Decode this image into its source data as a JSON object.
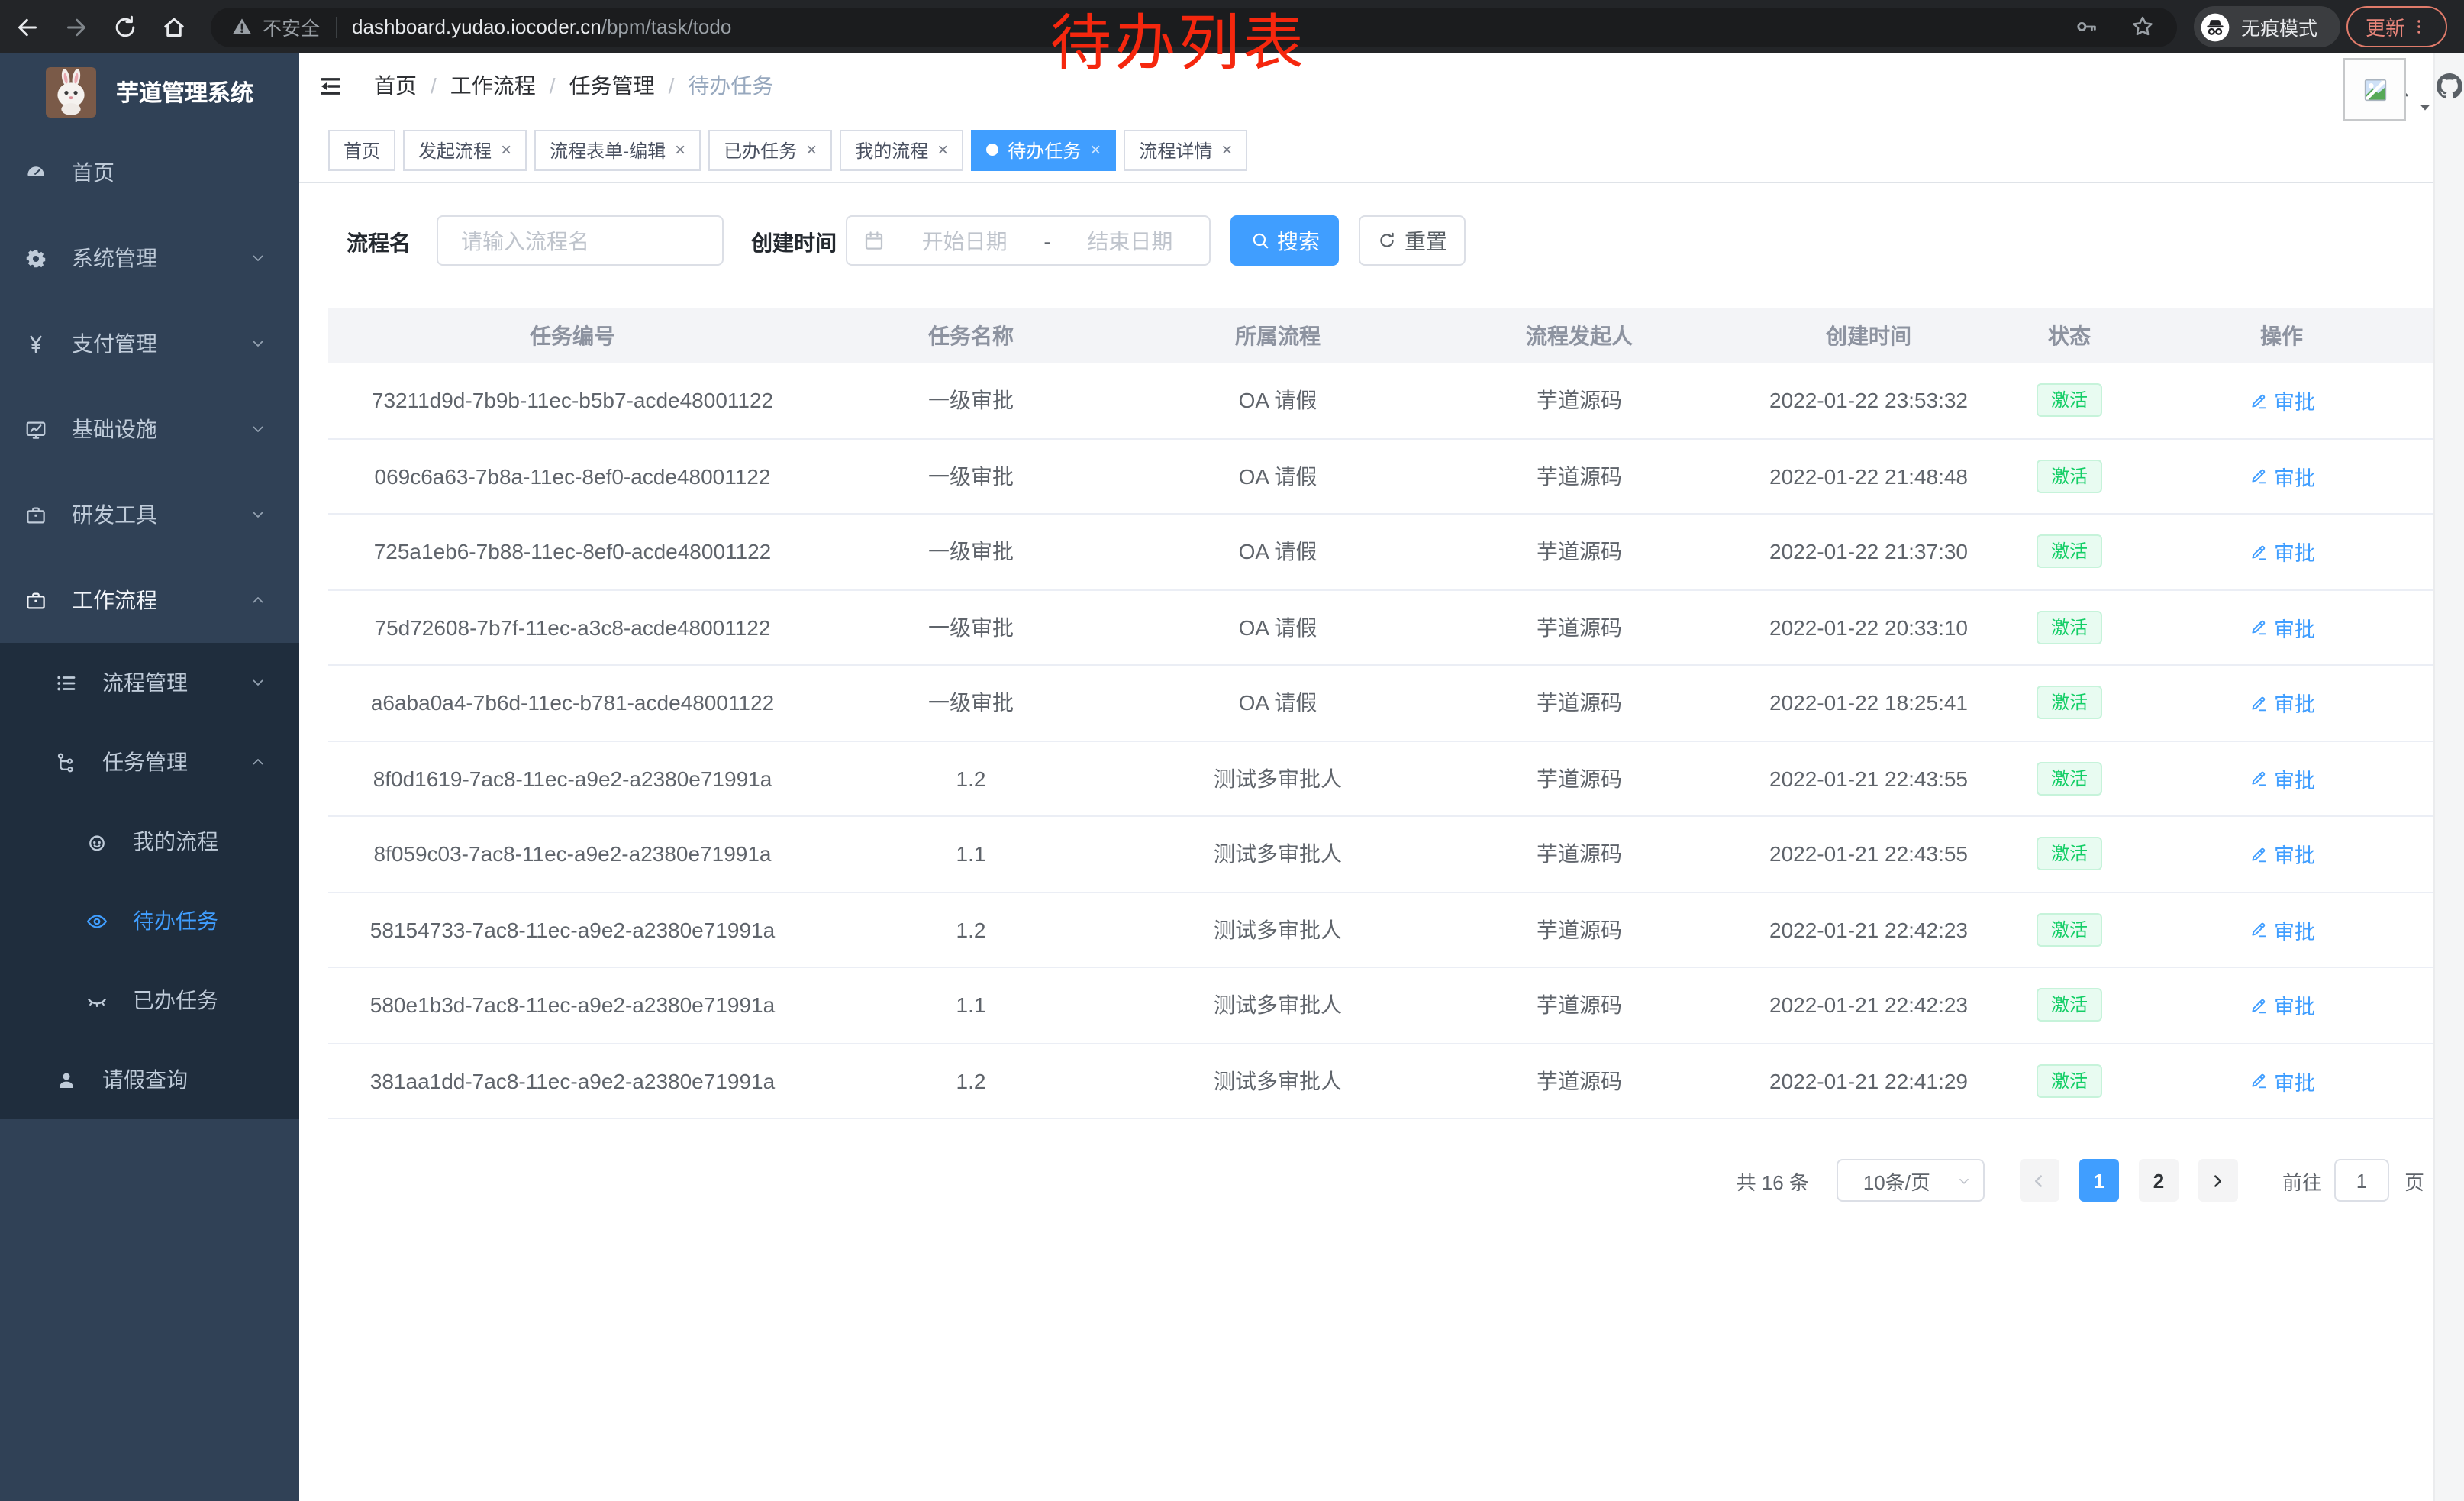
{
  "browser": {
    "icons": {
      "back": "arrow-left-icon",
      "forward": "arrow-right-icon",
      "reload": "reload-icon",
      "home": "home-icon",
      "warning": "warning-icon",
      "key": "key-icon",
      "star": "star-icon",
      "incognito": "incognito-icon",
      "menu_dots": "dots-vertical-icon"
    },
    "security_label": "不安全",
    "url_host": "dashboard.yudao.iocoder.cn",
    "url_path": "/bpm/task/todo",
    "incognito_label": "无痕模式",
    "update_label": "更新"
  },
  "annotation": {
    "text": "待办列表",
    "color": "#f5270e"
  },
  "colors": {
    "accent": "#409eff",
    "success": "#13ce66",
    "sidebar_bg": "#304156",
    "submenu_bg": "#1f2d3d",
    "annotation_red": "#f5270e",
    "update_pill_red": "#e07b6a"
  },
  "sidebar": {
    "app_title": "芋道管理系统",
    "logo_icon": "rabbit-logo",
    "items": [
      {
        "id": "home",
        "label": "首页",
        "icon": "dashboard-icon",
        "level": 1,
        "active": false,
        "open": false
      },
      {
        "id": "system",
        "label": "系统管理",
        "icon": "gear-icon",
        "level": 1,
        "arrow_icon": "chevron-down-icon",
        "active": false,
        "open": false
      },
      {
        "id": "payment",
        "label": "支付管理",
        "icon": "yen-icon",
        "level": 1,
        "arrow_icon": "chevron-down-icon",
        "active": false,
        "open": false
      },
      {
        "id": "infra",
        "label": "基础设施",
        "icon": "monitor-icon",
        "level": 1,
        "arrow_icon": "chevron-down-icon",
        "active": false,
        "open": false
      },
      {
        "id": "devtools",
        "label": "研发工具",
        "icon": "briefcase-icon",
        "level": 1,
        "arrow_icon": "chevron-down-icon",
        "active": false,
        "open": false
      },
      {
        "id": "workflow",
        "label": "工作流程",
        "icon": "briefcase-icon",
        "level": 1,
        "arrow_icon": "chevron-up-icon",
        "active": false,
        "open": true
      }
    ],
    "submenu": [
      {
        "id": "process-mgmt",
        "label": "流程管理",
        "icon": "list-icon",
        "level": 2,
        "arrow_icon": "chevron-down-icon",
        "active": false
      },
      {
        "id": "task-mgmt",
        "label": "任务管理",
        "icon": "tree-icon",
        "level": 2,
        "arrow_icon": "chevron-up-icon",
        "active": false
      },
      {
        "id": "my-process",
        "label": "我的流程",
        "icon": "face-icon",
        "level": 3,
        "active": false
      },
      {
        "id": "todo-task",
        "label": "待办任务",
        "icon": "eye-open-icon",
        "level": 3,
        "active": true
      },
      {
        "id": "done-task",
        "label": "已办任务",
        "icon": "eye-closed-icon",
        "level": 3,
        "active": false
      },
      {
        "id": "leave-query",
        "label": "请假查询",
        "icon": "user-icon",
        "level": 2,
        "active": false
      }
    ]
  },
  "header": {
    "fold_icon": "fold-icon",
    "breadcrumb": [
      {
        "label": "首页",
        "sep": true,
        "current": false
      },
      {
        "label": "工作流程",
        "sep": true,
        "current": false
      },
      {
        "label": "任务管理",
        "sep": true,
        "current": false
      },
      {
        "label": "待办任务",
        "sep": false,
        "current": true
      }
    ],
    "icons": [
      {
        "icon": "search-icon"
      },
      {
        "icon": "github-icon"
      },
      {
        "icon": "help-icon"
      },
      {
        "icon": "fullscreen-icon"
      },
      {
        "icon": "font-size-icon"
      }
    ],
    "avatar_icon": "broken-image-icon",
    "caret_icon": "caret-down-icon"
  },
  "tabs": [
    {
      "id": "home",
      "label": "首页",
      "closable": false,
      "active": false
    },
    {
      "id": "start",
      "label": "发起流程",
      "closable": true,
      "active": false
    },
    {
      "id": "form-edit",
      "label": "流程表单-编辑",
      "closable": true,
      "active": false
    },
    {
      "id": "done",
      "label": "已办任务",
      "closable": true,
      "active": false
    },
    {
      "id": "mine",
      "label": "我的流程",
      "closable": true,
      "active": false
    },
    {
      "id": "todo",
      "label": "待办任务",
      "closable": true,
      "active": true
    },
    {
      "id": "detail",
      "label": "流程详情",
      "closable": true,
      "active": false
    }
  ],
  "filters": {
    "name_label": "流程名",
    "name_placeholder": "请输入流程名",
    "name_value": "",
    "time_label": "创建时间",
    "calendar_icon": "calendar-icon",
    "start_placeholder": "开始日期",
    "range_separator": "-",
    "end_placeholder": "结束日期",
    "search_label": "搜索",
    "search_icon": "search-icon",
    "reset_label": "重置",
    "reset_icon": "refresh-icon"
  },
  "table": {
    "columns": [
      "任务编号",
      "任务名称",
      "所属流程",
      "流程发起人",
      "创建时间",
      "状态",
      "操作"
    ],
    "action_label": "审批",
    "action_icon": "edit-icon",
    "rows": [
      {
        "id": "73211d9d-7b9b-11ec-b5b7-acde48001122",
        "name": "一级审批",
        "process": "OA 请假",
        "initiator": "芋道源码",
        "created": "2022-01-22 23:53:32",
        "status": "激活"
      },
      {
        "id": "069c6a63-7b8a-11ec-8ef0-acde48001122",
        "name": "一级审批",
        "process": "OA 请假",
        "initiator": "芋道源码",
        "created": "2022-01-22 21:48:48",
        "status": "激活"
      },
      {
        "id": "725a1eb6-7b88-11ec-8ef0-acde48001122",
        "name": "一级审批",
        "process": "OA 请假",
        "initiator": "芋道源码",
        "created": "2022-01-22 21:37:30",
        "status": "激活"
      },
      {
        "id": "75d72608-7b7f-11ec-a3c8-acde48001122",
        "name": "一级审批",
        "process": "OA 请假",
        "initiator": "芋道源码",
        "created": "2022-01-22 20:33:10",
        "status": "激活"
      },
      {
        "id": "a6aba0a4-7b6d-11ec-b781-acde48001122",
        "name": "一级审批",
        "process": "OA 请假",
        "initiator": "芋道源码",
        "created": "2022-01-22 18:25:41",
        "status": "激活"
      },
      {
        "id": "8f0d1619-7ac8-11ec-a9e2-a2380e71991a",
        "name": "1.2",
        "process": "测试多审批人",
        "initiator": "芋道源码",
        "created": "2022-01-21 22:43:55",
        "status": "激活"
      },
      {
        "id": "8f059c03-7ac8-11ec-a9e2-a2380e71991a",
        "name": "1.1",
        "process": "测试多审批人",
        "initiator": "芋道源码",
        "created": "2022-01-21 22:43:55",
        "status": "激活"
      },
      {
        "id": "58154733-7ac8-11ec-a9e2-a2380e71991a",
        "name": "1.2",
        "process": "测试多审批人",
        "initiator": "芋道源码",
        "created": "2022-01-21 22:42:23",
        "status": "激活"
      },
      {
        "id": "580e1b3d-7ac8-11ec-a9e2-a2380e71991a",
        "name": "1.1",
        "process": "测试多审批人",
        "initiator": "芋道源码",
        "created": "2022-01-21 22:42:23",
        "status": "激活"
      },
      {
        "id": "381aa1dd-7ac8-11ec-a9e2-a2380e71991a",
        "name": "1.2",
        "process": "测试多审批人",
        "initiator": "芋道源码",
        "created": "2022-01-21 22:41:29",
        "status": "激活"
      }
    ]
  },
  "pagination": {
    "total_label": "共 16 条",
    "page_size": "10条/页",
    "size_caret_icon": "chevron-down-icon",
    "prev_icon": "chevron-left-icon",
    "next_icon": "chevron-right-icon",
    "pages": [
      {
        "label": "1",
        "active": true
      },
      {
        "label": "2",
        "active": false
      }
    ],
    "goto_label": "前往",
    "goto_value": "1",
    "page_unit": "页"
  }
}
